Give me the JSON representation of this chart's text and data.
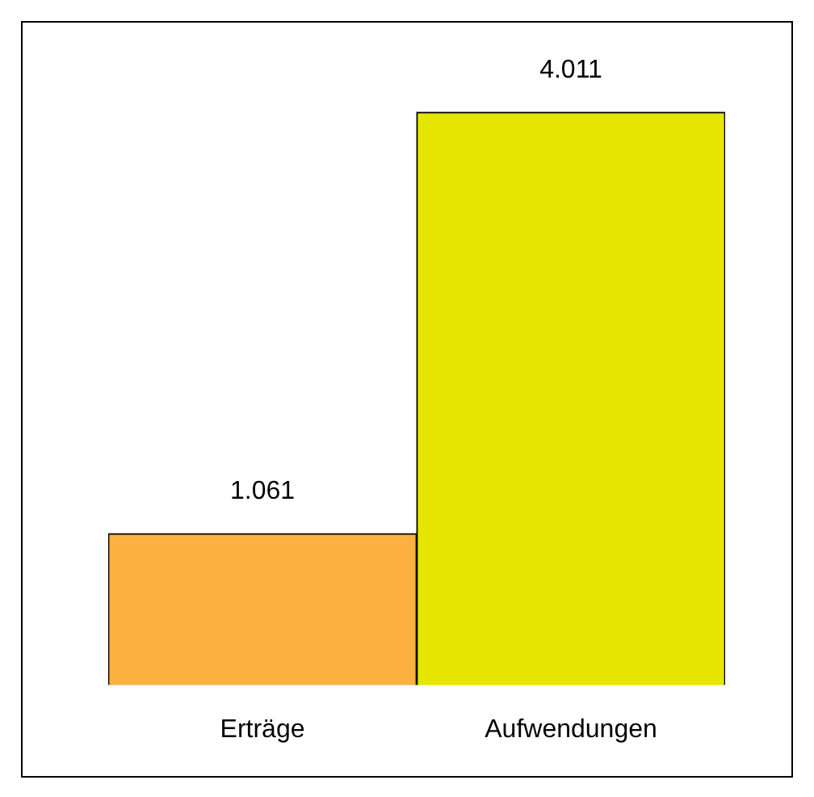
{
  "chart_data": {
    "type": "bar",
    "categories": [
      "Erträge",
      "Aufwendungen"
    ],
    "values": [
      1061,
      4011
    ],
    "colors": [
      "#fbb040",
      "#e6e600"
    ],
    "value_labels": [
      "1.061",
      "4.011"
    ]
  }
}
